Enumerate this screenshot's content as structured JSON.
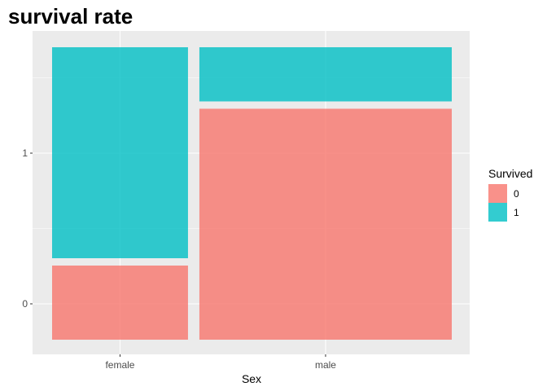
{
  "chart_data": {
    "type": "mosaic",
    "title": "survival rate",
    "xlabel": "Sex",
    "ylabel": "",
    "x_categories": [
      "female",
      "male"
    ],
    "x_widths": [
      0.35,
      0.65
    ],
    "y_ticks": [
      0,
      1
    ],
    "y_tick_labels": [
      "0",
      "1"
    ],
    "legend": {
      "title": "Survived",
      "placement": "right",
      "entries": [
        {
          "label": "0",
          "color": "#F8766D"
        },
        {
          "label": "1",
          "color": "#00BFC4"
        }
      ]
    },
    "series": [
      {
        "name": "0",
        "color": "#F8766D",
        "values": [
          0.26,
          0.81
        ]
      },
      {
        "name": "1",
        "color": "#00BFC4",
        "values": [
          0.74,
          0.19
        ]
      }
    ],
    "grid": true,
    "background": "#EBEBEB"
  }
}
